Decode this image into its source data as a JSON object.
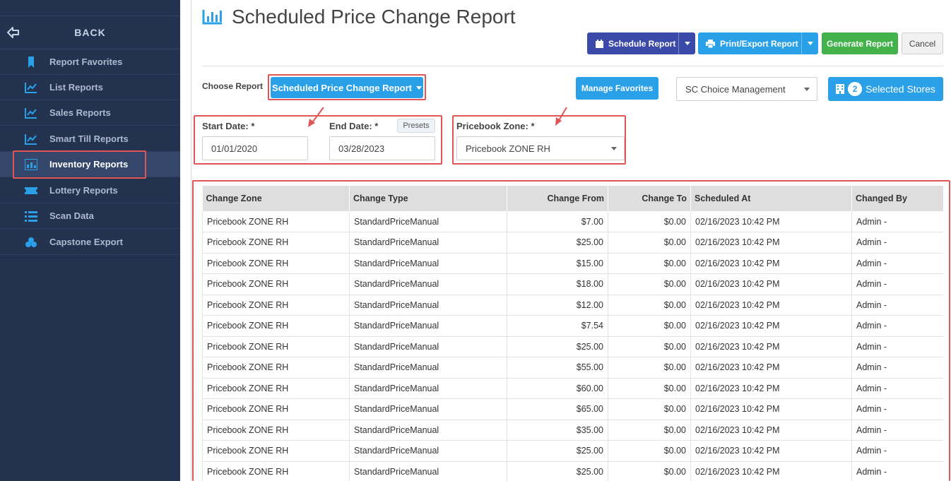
{
  "sidebar": {
    "back_label": "BACK",
    "items": [
      {
        "label": "Report Favorites",
        "icon": "bookmark-icon",
        "active": false
      },
      {
        "label": "List Reports",
        "icon": "line-chart-icon",
        "active": false
      },
      {
        "label": "Sales Reports",
        "icon": "line-chart-icon",
        "active": false
      },
      {
        "label": "Smart Till Reports",
        "icon": "line-chart-icon",
        "active": false
      },
      {
        "label": "Inventory Reports",
        "icon": "inventory-chart-icon",
        "active": true
      },
      {
        "label": "Lottery Reports",
        "icon": "ticket-icon",
        "active": false
      },
      {
        "label": "Scan Data",
        "icon": "list-icon",
        "active": false
      },
      {
        "label": "Capstone Export",
        "icon": "cubes-icon",
        "active": false
      }
    ]
  },
  "header": {
    "title": "Scheduled Price Change Report",
    "icon": "bar-chart-icon"
  },
  "toolbar": {
    "schedule_label": "Schedule Report",
    "print_label": "Print/Export Report",
    "generate_label": "Generate Report",
    "cancel_label": "Cancel"
  },
  "report_bar": {
    "choose_label": "Choose Report",
    "report_select": "Scheduled Price Change Report",
    "manage_label": "Manage Favorites",
    "company_select": "SC Choice Management",
    "stores_count": "2",
    "stores_label": "Selected Stores"
  },
  "filters": {
    "start_label": "Start Date: *",
    "start_value": "01/01/2020",
    "end_label": "End Date: *",
    "end_value": "03/28/2023",
    "presets_label": "Presets",
    "zone_label": "Pricebook Zone: *",
    "zone_value": "Pricebook ZONE RH"
  },
  "table": {
    "headers": [
      "Change Zone",
      "Change Type",
      "Change From",
      "Change To",
      "Scheduled At",
      "Changed By"
    ],
    "rows": [
      [
        "Pricebook ZONE RH",
        "StandardPriceManual",
        "$7.00",
        "$0.00",
        "02/16/2023 10:42 PM",
        "Admin -"
      ],
      [
        "Pricebook ZONE RH",
        "StandardPriceManual",
        "$25.00",
        "$0.00",
        "02/16/2023 10:42 PM",
        "Admin -"
      ],
      [
        "Pricebook ZONE RH",
        "StandardPriceManual",
        "$15.00",
        "$0.00",
        "02/16/2023 10:42 PM",
        "Admin -"
      ],
      [
        "Pricebook ZONE RH",
        "StandardPriceManual",
        "$18.00",
        "$0.00",
        "02/16/2023 10:42 PM",
        "Admin -"
      ],
      [
        "Pricebook ZONE RH",
        "StandardPriceManual",
        "$12.00",
        "$0.00",
        "02/16/2023 10:42 PM",
        "Admin -"
      ],
      [
        "Pricebook ZONE RH",
        "StandardPriceManual",
        "$7.54",
        "$0.00",
        "02/16/2023 10:42 PM",
        "Admin -"
      ],
      [
        "Pricebook ZONE RH",
        "StandardPriceManual",
        "$25.00",
        "$0.00",
        "02/16/2023 10:42 PM",
        "Admin -"
      ],
      [
        "Pricebook ZONE RH",
        "StandardPriceManual",
        "$55.00",
        "$0.00",
        "02/16/2023 10:42 PM",
        "Admin -"
      ],
      [
        "Pricebook ZONE RH",
        "StandardPriceManual",
        "$60.00",
        "$0.00",
        "02/16/2023 10:42 PM",
        "Admin -"
      ],
      [
        "Pricebook ZONE RH",
        "StandardPriceManual",
        "$65.00",
        "$0.00",
        "02/16/2023 10:42 PM",
        "Admin -"
      ],
      [
        "Pricebook ZONE RH",
        "StandardPriceManual",
        "$35.00",
        "$0.00",
        "02/16/2023 10:42 PM",
        "Admin -"
      ],
      [
        "Pricebook ZONE RH",
        "StandardPriceManual",
        "$25.00",
        "$0.00",
        "02/16/2023 10:42 PM",
        "Admin -"
      ],
      [
        "Pricebook ZONE RH",
        "StandardPriceManual",
        "$25.00",
        "$0.00",
        "02/16/2023 10:42 PM",
        "Admin -"
      ]
    ]
  },
  "colors": {
    "sidebar_bg": "#23324f",
    "accent_blue": "#2aa0e8",
    "navy": "#3b4aa8",
    "green": "#43b24b",
    "highlight": "#e05555"
  }
}
